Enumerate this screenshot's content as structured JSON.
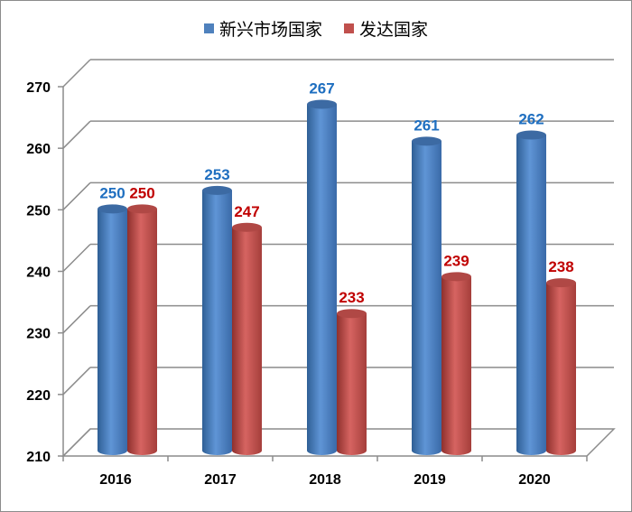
{
  "chart_data": {
    "type": "bar",
    "style": "3d-cylinder",
    "title": "",
    "xlabel": "",
    "ylabel": "",
    "categories": [
      "2016",
      "2017",
      "2018",
      "2019",
      "2020"
    ],
    "series": [
      {
        "name": "新兴市场国家",
        "color": "#4f81bd",
        "label_color": "#1f6fc0",
        "values": [
          250,
          253,
          267,
          261,
          262
        ]
      },
      {
        "name": "发达国家",
        "color": "#c0504d",
        "label_color": "#c00000",
        "values": [
          250,
          247,
          233,
          239,
          238
        ]
      }
    ],
    "ylim": [
      210,
      270
    ],
    "yticks": [
      210,
      220,
      230,
      240,
      250,
      260,
      270
    ],
    "grid": true,
    "legend_position": "top",
    "data_labels": true
  },
  "legend": {
    "items": [
      {
        "label": "新兴市场国家",
        "color": "#4f81bd"
      },
      {
        "label": "发达国家",
        "color": "#c0504d"
      }
    ]
  }
}
